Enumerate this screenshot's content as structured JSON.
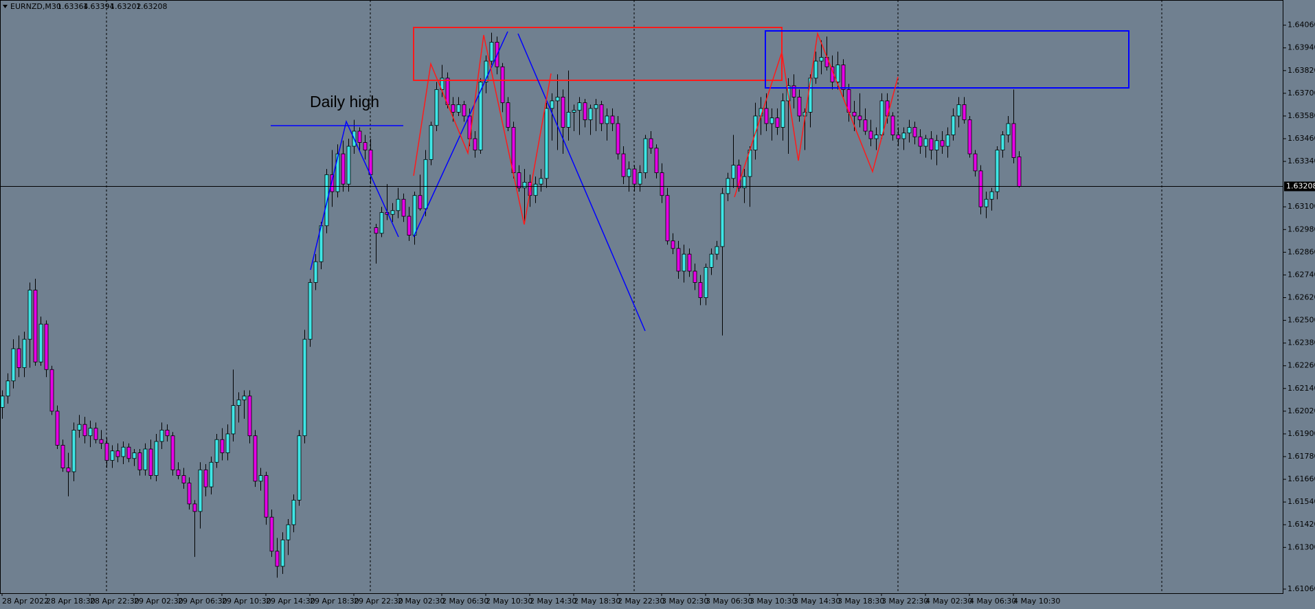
{
  "chart_data": {
    "type": "candlestick",
    "symbol": "EURNZD,M30",
    "annotation": "Daily high",
    "colors": {
      "up": "#3fe6e6",
      "down": "#e600e6",
      "wick": "#000000",
      "background": "#708090"
    },
    "ylim": [
      1.61058,
      1.64193
    ],
    "yticks": [
      {
        "value": 1.6406,
        "label": "1.64060"
      },
      {
        "value": 1.6394,
        "label": "1.63940"
      },
      {
        "value": 1.6382,
        "label": "1.63820"
      },
      {
        "value": 1.637,
        "label": "1.63700"
      },
      {
        "value": 1.6358,
        "label": "1.63580"
      },
      {
        "value": 1.6346,
        "label": "1.63460"
      },
      {
        "value": 1.6334,
        "label": "1.63340"
      },
      {
        "value": 1.631,
        "label": "1.63100"
      },
      {
        "value": 1.6298,
        "label": "1.62980"
      },
      {
        "value": 1.6286,
        "label": "1.62860"
      },
      {
        "value": 1.6274,
        "label": "1.62740"
      },
      {
        "value": 1.6262,
        "label": "1.62620"
      },
      {
        "value": 1.625,
        "label": "1.62500"
      },
      {
        "value": 1.6238,
        "label": "1.62380"
      },
      {
        "value": 1.6226,
        "label": "1.62260"
      },
      {
        "value": 1.6214,
        "label": "1.62140"
      },
      {
        "value": 1.6202,
        "label": "1.62020"
      },
      {
        "value": 1.619,
        "label": "1.61900"
      },
      {
        "value": 1.6178,
        "label": "1.61780"
      },
      {
        "value": 1.6166,
        "label": "1.61660"
      },
      {
        "value": 1.6154,
        "label": "1.61540"
      },
      {
        "value": 1.6142,
        "label": "1.61420"
      },
      {
        "value": 1.613,
        "label": "1.61300"
      },
      {
        "value": 1.6106,
        "label": "1.61060"
      }
    ],
    "categories": [
      "28 Apr 2022",
      null,
      null,
      null,
      null,
      null,
      null,
      null,
      "28 Apr 18:30",
      null,
      null,
      null,
      null,
      null,
      null,
      null,
      "28 Apr 22:30",
      null,
      null,
      null,
      null,
      null,
      null,
      null,
      "29 Apr 02:30",
      null,
      null,
      null,
      null,
      null,
      null,
      null,
      "29 Apr 06:30",
      null,
      null,
      null,
      null,
      null,
      null,
      null,
      "29 Apr 10:30",
      null,
      null,
      null,
      null,
      null,
      null,
      null,
      "29 Apr 14:30",
      null,
      null,
      null,
      null,
      null,
      null,
      null,
      "29 Apr 18:30",
      null,
      null,
      null,
      null,
      null,
      null,
      null,
      "29 Apr 22:30",
      null,
      null,
      null,
      null,
      null,
      null,
      null,
      "2 May 02:30",
      null,
      null,
      null,
      null,
      null,
      null,
      null,
      "2 May 06:30",
      null,
      null,
      null,
      null,
      null,
      null,
      null,
      "2 May 10:30",
      null,
      null,
      null,
      null,
      null,
      null,
      null,
      "2 May 14:30",
      null,
      null,
      null,
      null,
      null,
      null,
      null,
      "2 May 18:30",
      null,
      null,
      null,
      null,
      null,
      null,
      null,
      "2 May 22:30",
      null,
      null,
      null,
      null,
      null,
      null,
      null,
      "3 May 02:30",
      null,
      null,
      null,
      null,
      null,
      null,
      null,
      "3 May 06:30",
      null,
      null,
      null,
      null,
      null,
      null,
      null,
      "3 May 10:30",
      null,
      null,
      null,
      null,
      null,
      null,
      null,
      "3 May 14:30",
      null,
      null,
      null,
      null,
      null,
      null,
      null,
      "3 May 18:30",
      null,
      null,
      null,
      null,
      null,
      null,
      null,
      "3 May 22:30",
      null,
      null,
      null,
      null,
      null,
      null,
      null,
      "4 May 02:30",
      null,
      null,
      null,
      null,
      null,
      null,
      null,
      "4 May 06:30",
      null,
      null,
      null,
      null,
      null,
      null,
      null,
      "4 May 10:30",
      null
    ],
    "ohlc": [
      [
        1.6204,
        1.6213,
        1.6198,
        1.621
      ],
      [
        1.621,
        1.6222,
        1.6206,
        1.6218
      ],
      [
        1.6218,
        1.624,
        1.6214,
        1.6235
      ],
      [
        1.6235,
        1.6242,
        1.622,
        1.6225
      ],
      [
        1.6225,
        1.6244,
        1.622,
        1.624
      ],
      [
        1.624,
        1.627,
        1.6225,
        1.6266
      ],
      [
        1.6266,
        1.6272,
        1.6226,
        1.6228
      ],
      [
        1.6228,
        1.6252,
        1.6226,
        1.6248
      ],
      [
        1.6248,
        1.625,
        1.622,
        1.6224
      ],
      [
        1.6224,
        1.6226,
        1.62,
        1.6202
      ],
      [
        1.6202,
        1.6205,
        1.6182,
        1.6184
      ],
      [
        1.6184,
        1.6187,
        1.617,
        1.6172
      ],
      [
        1.6172,
        1.618,
        1.6157,
        1.617
      ],
      [
        1.617,
        1.6196,
        1.6165,
        1.6192
      ],
      [
        1.6192,
        1.62,
        1.6188,
        1.6195
      ],
      [
        1.6195,
        1.6199,
        1.6185,
        1.6189
      ],
      [
        1.6189,
        1.6197,
        1.6183,
        1.6193
      ],
      [
        1.6193,
        1.6196,
        1.6185,
        1.6187
      ],
      [
        1.6187,
        1.6192,
        1.6182,
        1.6185
      ],
      [
        1.6185,
        1.6188,
        1.6172,
        1.6176
      ],
      [
        1.6176,
        1.6184,
        1.6172,
        1.6181
      ],
      [
        1.6181,
        1.6185,
        1.6175,
        1.6178
      ],
      [
        1.6178,
        1.6186,
        1.6174,
        1.6183
      ],
      [
        1.6183,
        1.6185,
        1.6175,
        1.6177
      ],
      [
        1.6177,
        1.6182,
        1.6173,
        1.618
      ],
      [
        1.618,
        1.6182,
        1.6168,
        1.6171
      ],
      [
        1.6171,
        1.6185,
        1.6168,
        1.6182
      ],
      [
        1.6182,
        1.6187,
        1.6166,
        1.6168
      ],
      [
        1.6168,
        1.619,
        1.6165,
        1.6186
      ],
      [
        1.6186,
        1.6196,
        1.6182,
        1.6192
      ],
      [
        1.6192,
        1.6195,
        1.6186,
        1.6189
      ],
      [
        1.6189,
        1.6191,
        1.6168,
        1.6171
      ],
      [
        1.6171,
        1.6175,
        1.6166,
        1.6168
      ],
      [
        1.6168,
        1.6172,
        1.6161,
        1.6164
      ],
      [
        1.6164,
        1.6167,
        1.615,
        1.6153
      ],
      [
        1.6153,
        1.6155,
        1.6125,
        1.6149
      ],
      [
        1.6149,
        1.6175,
        1.614,
        1.6171
      ],
      [
        1.6171,
        1.6174,
        1.6157,
        1.6162
      ],
      [
        1.6162,
        1.6178,
        1.6158,
        1.6175
      ],
      [
        1.6175,
        1.619,
        1.6172,
        1.6187
      ],
      [
        1.6187,
        1.6193,
        1.6176,
        1.618
      ],
      [
        1.618,
        1.6195,
        1.6176,
        1.619
      ],
      [
        1.619,
        1.6224,
        1.6186,
        1.6205
      ],
      [
        1.6205,
        1.6212,
        1.6196,
        1.6208
      ],
      [
        1.6208,
        1.6213,
        1.6198,
        1.621
      ],
      [
        1.621,
        1.6213,
        1.6185,
        1.6189
      ],
      [
        1.6189,
        1.6192,
        1.6162,
        1.6165
      ],
      [
        1.6165,
        1.6172,
        1.616,
        1.6168
      ],
      [
        1.6168,
        1.617,
        1.6142,
        1.6146
      ],
      [
        1.6146,
        1.615,
        1.6125,
        1.6128
      ],
      [
        1.6128,
        1.6135,
        1.6114,
        1.612
      ],
      [
        1.612,
        1.6138,
        1.6116,
        1.6134
      ],
      [
        1.6134,
        1.6145,
        1.6126,
        1.6142
      ],
      [
        1.6142,
        1.6158,
        1.6138,
        1.6155
      ],
      [
        1.6155,
        1.6192,
        1.6152,
        1.6189
      ],
      [
        1.6189,
        1.6245,
        1.6185,
        1.624
      ],
      [
        1.624,
        1.6272,
        1.6236,
        1.627
      ],
      [
        1.627,
        1.6285,
        1.6266,
        1.6281
      ],
      [
        1.6281,
        1.6302,
        1.6277,
        1.63
      ],
      [
        1.63,
        1.633,
        1.6296,
        1.6327
      ],
      [
        1.6327,
        1.634,
        1.631,
        1.6318
      ],
      [
        1.6318,
        1.6343,
        1.6315,
        1.6338
      ],
      [
        1.6338,
        1.6345,
        1.6318,
        1.6322
      ],
      [
        1.6322,
        1.6346,
        1.6318,
        1.6342
      ],
      [
        1.6342,
        1.6356,
        1.6338,
        1.635
      ],
      [
        1.635,
        1.6352,
        1.634,
        1.6344
      ],
      [
        1.6344,
        1.6348,
        1.6335,
        1.634
      ],
      [
        1.634,
        1.6346,
        1.6322,
        1.6327
      ],
      [
        1.6299,
        1.6301,
        1.628,
        1.6296
      ],
      [
        1.6296,
        1.631,
        1.6294,
        1.6307
      ],
      [
        1.6307,
        1.6322,
        1.6303,
        1.6306
      ],
      [
        1.6306,
        1.6312,
        1.6302,
        1.6308
      ],
      [
        1.6308,
        1.632,
        1.6304,
        1.6314
      ],
      [
        1.6314,
        1.6317,
        1.6302,
        1.6305
      ],
      [
        1.6305,
        1.631,
        1.6292,
        1.6295
      ],
      [
        1.6295,
        1.6318,
        1.629,
        1.6316
      ],
      [
        1.6316,
        1.6327,
        1.6308,
        1.6309
      ],
      [
        1.6309,
        1.634,
        1.6305,
        1.6335
      ],
      [
        1.6335,
        1.6355,
        1.6332,
        1.6353
      ],
      [
        1.6353,
        1.6376,
        1.635,
        1.6372
      ],
      [
        1.6372,
        1.6385,
        1.6368,
        1.6378
      ],
      [
        1.6378,
        1.6381,
        1.6362,
        1.6364
      ],
      [
        1.6364,
        1.6368,
        1.6355,
        1.636
      ],
      [
        1.636,
        1.6368,
        1.6358,
        1.6364
      ],
      [
        1.6364,
        1.6366,
        1.6355,
        1.6358
      ],
      [
        1.6358,
        1.6362,
        1.6342,
        1.6346
      ],
      [
        1.6346,
        1.635,
        1.6336,
        1.634
      ],
      [
        1.634,
        1.6378,
        1.6338,
        1.6376
      ],
      [
        1.6376,
        1.639,
        1.637,
        1.6387
      ],
      [
        1.6387,
        1.6402,
        1.6385,
        1.6397
      ],
      [
        1.6397,
        1.64,
        1.638,
        1.6384
      ],
      [
        1.6384,
        1.6386,
        1.636,
        1.6365
      ],
      [
        1.6365,
        1.6368,
        1.635,
        1.6352
      ],
      [
        1.6352,
        1.6355,
        1.6325,
        1.6328
      ],
      [
        1.6328,
        1.6332,
        1.6318,
        1.632
      ],
      [
        1.632,
        1.633,
        1.6302,
        1.6323
      ],
      [
        1.6323,
        1.6327,
        1.631,
        1.6316
      ],
      [
        1.6316,
        1.6326,
        1.6312,
        1.6322
      ],
      [
        1.6322,
        1.633,
        1.6318,
        1.6325
      ],
      [
        1.6325,
        1.6365,
        1.632,
        1.6362
      ],
      [
        1.6362,
        1.637,
        1.6345,
        1.6366
      ],
      [
        1.6366,
        1.638,
        1.634,
        1.6368
      ],
      [
        1.6368,
        1.6372,
        1.6338,
        1.6352
      ],
      [
        1.6352,
        1.6382,
        1.6345,
        1.636
      ],
      [
        1.636,
        1.6364,
        1.635,
        1.6361
      ],
      [
        1.6361,
        1.6368,
        1.6348,
        1.6365
      ],
      [
        1.6365,
        1.6367,
        1.6352,
        1.6356
      ],
      [
        1.6356,
        1.6364,
        1.6348,
        1.6362
      ],
      [
        1.6362,
        1.6367,
        1.635,
        1.6364
      ],
      [
        1.6364,
        1.6366,
        1.635,
        1.6354
      ],
      [
        1.6354,
        1.6362,
        1.6345,
        1.6358
      ],
      [
        1.6358,
        1.6362,
        1.635,
        1.6354
      ],
      [
        1.6354,
        1.6358,
        1.6335,
        1.6338
      ],
      [
        1.6338,
        1.6342,
        1.6322,
        1.6326
      ],
      [
        1.6326,
        1.6334,
        1.6318,
        1.633
      ],
      [
        1.633,
        1.6332,
        1.6318,
        1.6322
      ],
      [
        1.6322,
        1.6332,
        1.6318,
        1.6328
      ],
      [
        1.6328,
        1.6348,
        1.6325,
        1.6346
      ],
      [
        1.6346,
        1.635,
        1.6338,
        1.6341
      ],
      [
        1.6341,
        1.6343,
        1.6325,
        1.6328
      ],
      [
        1.6328,
        1.6333,
        1.6312,
        1.6316
      ],
      [
        1.6316,
        1.632,
        1.629,
        1.6292
      ],
      [
        1.6292,
        1.6296,
        1.6285,
        1.6288
      ],
      [
        1.6288,
        1.6292,
        1.6272,
        1.6276
      ],
      [
        1.6276,
        1.629,
        1.627,
        1.6285
      ],
      [
        1.6285,
        1.6288,
        1.6273,
        1.6276
      ],
      [
        1.6276,
        1.628,
        1.6266,
        1.627
      ],
      [
        1.627,
        1.6274,
        1.6258,
        1.6262
      ],
      [
        1.6262,
        1.628,
        1.6258,
        1.6278
      ],
      [
        1.6278,
        1.6288,
        1.6274,
        1.6285
      ],
      [
        1.6285,
        1.6292,
        1.6282,
        1.6289
      ],
      [
        1.6289,
        1.632,
        1.6242,
        1.6317
      ],
      [
        1.6317,
        1.6328,
        1.6313,
        1.6325
      ],
      [
        1.6325,
        1.6348,
        1.632,
        1.6332
      ],
      [
        1.6332,
        1.6335,
        1.6318,
        1.632
      ],
      [
        1.632,
        1.633,
        1.6312,
        1.6326
      ],
      [
        1.6326,
        1.6342,
        1.631,
        1.634
      ],
      [
        1.634,
        1.6365,
        1.6335,
        1.6358
      ],
      [
        1.6358,
        1.6368,
        1.6348,
        1.6362
      ],
      [
        1.6362,
        1.637,
        1.635,
        1.6354
      ],
      [
        1.6354,
        1.6362,
        1.6345,
        1.6357
      ],
      [
        1.6357,
        1.6362,
        1.6348,
        1.6352
      ],
      [
        1.6352,
        1.637,
        1.6345,
        1.6366
      ],
      [
        1.6366,
        1.6378,
        1.6338,
        1.6374
      ],
      [
        1.6374,
        1.638,
        1.6362,
        1.6368
      ],
      [
        1.6368,
        1.6372,
        1.6355,
        1.6358
      ],
      [
        1.6358,
        1.6362,
        1.634,
        1.636
      ],
      [
        1.636,
        1.638,
        1.6352,
        1.6378
      ],
      [
        1.6378,
        1.6392,
        1.6375,
        1.6387
      ],
      [
        1.6387,
        1.6398,
        1.638,
        1.6389
      ],
      [
        1.6389,
        1.64,
        1.6382,
        1.6384
      ],
      [
        1.6384,
        1.639,
        1.6372,
        1.6376
      ],
      [
        1.6376,
        1.6392,
        1.6372,
        1.6385
      ],
      [
        1.6385,
        1.6388,
        1.6368,
        1.6372
      ],
      [
        1.6372,
        1.6375,
        1.6355,
        1.636
      ],
      [
        1.636,
        1.6366,
        1.635,
        1.6358
      ],
      [
        1.6358,
        1.637,
        1.6352,
        1.6356
      ],
      [
        1.6356,
        1.6362,
        1.6348,
        1.635
      ],
      [
        1.635,
        1.6356,
        1.6342,
        1.6346
      ],
      [
        1.6346,
        1.6352,
        1.634,
        1.6348
      ],
      [
        1.6348,
        1.637,
        1.6346,
        1.6366
      ],
      [
        1.6366,
        1.637,
        1.6354,
        1.6358
      ],
      [
        1.6358,
        1.636,
        1.6345,
        1.6348
      ],
      [
        1.6348,
        1.6352,
        1.6342,
        1.6346
      ],
      [
        1.6346,
        1.6352,
        1.634,
        1.6349
      ],
      [
        1.6349,
        1.6356,
        1.6344,
        1.6352
      ],
      [
        1.6352,
        1.6355,
        1.6343,
        1.6347
      ],
      [
        1.6347,
        1.6351,
        1.6338,
        1.6342
      ],
      [
        1.6342,
        1.6348,
        1.6336,
        1.6346
      ],
      [
        1.6346,
        1.635,
        1.6335,
        1.634
      ],
      [
        1.634,
        1.6348,
        1.6332,
        1.6345
      ],
      [
        1.6345,
        1.635,
        1.6338,
        1.6342
      ],
      [
        1.6342,
        1.6352,
        1.6336,
        1.6348
      ],
      [
        1.6348,
        1.6362,
        1.6345,
        1.6358
      ],
      [
        1.6358,
        1.6368,
        1.6352,
        1.6364
      ],
      [
        1.6364,
        1.6368,
        1.6354,
        1.6356
      ],
      [
        1.6356,
        1.6358,
        1.6336,
        1.6338
      ],
      [
        1.6338,
        1.634,
        1.6326,
        1.6329
      ],
      [
        1.6329,
        1.6332,
        1.6306,
        1.631
      ],
      [
        1.631,
        1.6318,
        1.6304,
        1.6314
      ],
      [
        1.6314,
        1.632,
        1.6308,
        1.6318
      ],
      [
        1.6318,
        1.6342,
        1.6314,
        1.634
      ],
      [
        1.634,
        1.635,
        1.6336,
        1.6348
      ],
      [
        1.6348,
        1.6358,
        1.6344,
        1.6354
      ],
      [
        1.6354,
        1.6372,
        1.6333,
        1.6336
      ],
      [
        1.63364,
        1.63394,
        1.63202,
        1.63208
      ]
    ]
  }
}
